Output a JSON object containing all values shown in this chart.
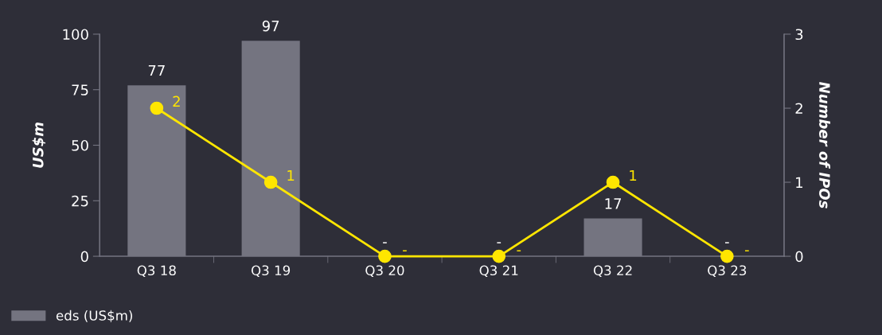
{
  "chart_data": {
    "type": "bar",
    "categories": [
      "Q3 18",
      "Q3 19",
      "Q3 20",
      "Q3 21",
      "Q3 22",
      "Q3 23"
    ],
    "series": [
      {
        "name": "eds (US$m)",
        "color": "#747480",
        "values": [
          77,
          97,
          0,
          0,
          17,
          0
        ],
        "value_labels": [
          "77",
          "97",
          "-",
          "-",
          "17",
          "-"
        ]
      },
      {
        "type": "line",
        "axis": "y2",
        "color": "#ffe600",
        "values": [
          2,
          1,
          0,
          0,
          1,
          0
        ],
        "value_labels": [
          "2",
          "1",
          "-",
          "-",
          "1",
          "-"
        ]
      }
    ],
    "ylabel": "US$m",
    "y2label": "Number of IPOs",
    "ylim": [
      0,
      100
    ],
    "yticks": [
      0,
      25,
      50,
      75,
      100
    ],
    "y2lim": [
      0,
      3
    ],
    "y2ticks": [
      0,
      1,
      2,
      3
    ],
    "grid": false,
    "legend": "bottom left",
    "marker": "circle",
    "line_style": "solid"
  }
}
